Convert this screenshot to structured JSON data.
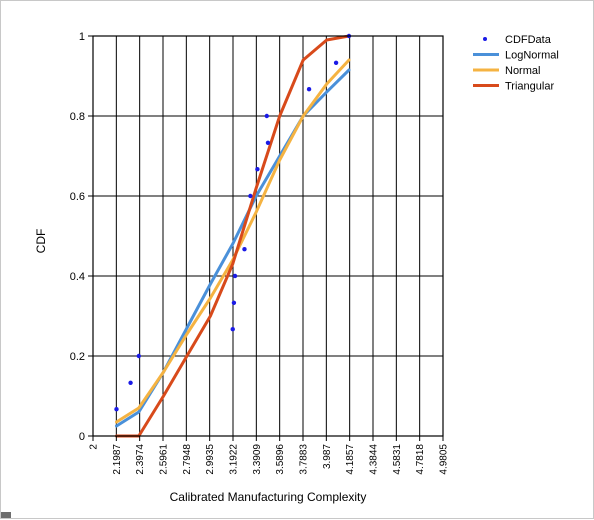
{
  "chart_data": {
    "type": "line",
    "xlabel": "Calibrated Manufacturing Complexity",
    "ylabel": "CDF",
    "xlim": [
      2,
      4.9805
    ],
    "ylim": [
      0,
      1
    ],
    "x_ticks": [
      "2",
      "2.1987",
      "2.3974",
      "2.5961",
      "2.7948",
      "2.9935",
      "3.1922",
      "3.3909",
      "3.5896",
      "3.7883",
      "3.987",
      "4.1857",
      "4.3844",
      "4.5831",
      "4.7818",
      "4.9805"
    ],
    "y_ticks": [
      "0",
      "0.2",
      "0.4",
      "0.6",
      "0.8",
      "1"
    ],
    "grid": true,
    "legend_position": "top-right",
    "legend": [
      "CDFData",
      "LogNormal",
      "Normal",
      "Triangular"
    ],
    "series": [
      {
        "name": "CDFData",
        "kind": "scatter",
        "color": "#1a1ae6",
        "x": [
          2.2,
          2.32,
          2.39,
          3.19,
          3.2,
          3.21,
          3.29,
          3.34,
          3.4,
          3.49,
          3.48,
          3.84,
          4.07,
          4.18
        ],
        "y": [
          0.067,
          0.133,
          0.2,
          0.267,
          0.333,
          0.4,
          0.467,
          0.6,
          0.667,
          0.733,
          0.8,
          0.867,
          0.933,
          1.0
        ]
      },
      {
        "name": "LogNormal",
        "kind": "line",
        "color": "#4a90d9",
        "x": [
          2.2,
          2.39,
          2.6,
          2.8,
          3.0,
          3.19,
          3.39,
          3.59,
          3.79,
          3.99,
          4.18
        ],
        "y": [
          0.025,
          0.06,
          0.16,
          0.27,
          0.38,
          0.48,
          0.6,
          0.7,
          0.8,
          0.86,
          0.915
        ]
      },
      {
        "name": "Normal",
        "kind": "line",
        "color": "#f5b342",
        "x": [
          2.2,
          2.39,
          2.6,
          2.8,
          3.0,
          3.19,
          3.39,
          3.59,
          3.79,
          3.99,
          4.18
        ],
        "y": [
          0.035,
          0.07,
          0.16,
          0.255,
          0.345,
          0.44,
          0.56,
          0.69,
          0.8,
          0.88,
          0.94
        ]
      },
      {
        "name": "Triangular",
        "kind": "line",
        "color": "#d84a1b",
        "x": [
          2.2,
          2.39,
          2.6,
          2.8,
          3.0,
          3.19,
          3.39,
          3.59,
          3.79,
          3.99,
          4.18
        ],
        "y": [
          0.0,
          0.0,
          0.1,
          0.2,
          0.3,
          0.43,
          0.62,
          0.8,
          0.94,
          0.99,
          1.0
        ]
      }
    ]
  }
}
